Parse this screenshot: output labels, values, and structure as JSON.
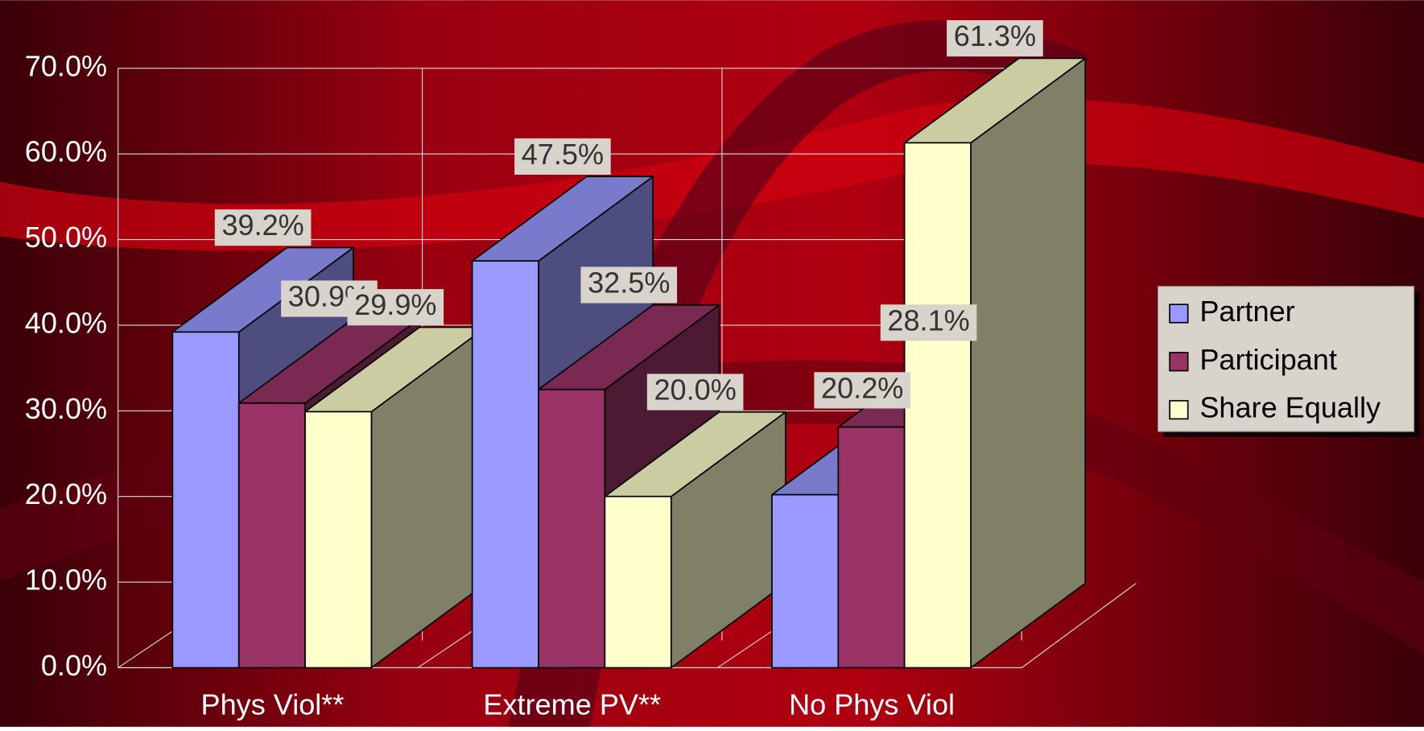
{
  "chart_data": {
    "type": "bar3d",
    "categories": [
      "Phys Viol**",
      "Extreme PV**",
      "No Phys Viol"
    ],
    "series": [
      {
        "name": "Partner",
        "color": "#9999ff",
        "values": [
          39.2,
          47.5,
          20.2
        ],
        "value_labels": [
          "39.2%",
          "47.5%",
          "20.2%"
        ]
      },
      {
        "name": "Participant",
        "color": "#993366",
        "values": [
          30.9,
          32.5,
          28.1
        ],
        "value_labels": [
          "30.9%",
          "32.5%",
          "28.1%"
        ]
      },
      {
        "name": "Share Equally",
        "color": "#ffffcc",
        "values": [
          29.9,
          20.0,
          61.3
        ],
        "value_labels": [
          "29.9%",
          "20.0%",
          "61.3%"
        ]
      }
    ],
    "ylim": [
      0,
      70
    ],
    "yticks": [
      {
        "value": 0,
        "label": "0.0%"
      },
      {
        "value": 10,
        "label": "10.0%"
      },
      {
        "value": 20,
        "label": "20.0%"
      },
      {
        "value": 30,
        "label": "30.0%"
      },
      {
        "value": 40,
        "label": "40.0%"
      },
      {
        "value": 50,
        "label": "50.0%"
      },
      {
        "value": 60,
        "label": "60.0%"
      },
      {
        "value": 70,
        "label": "70.0%"
      }
    ],
    "grid": true
  }
}
